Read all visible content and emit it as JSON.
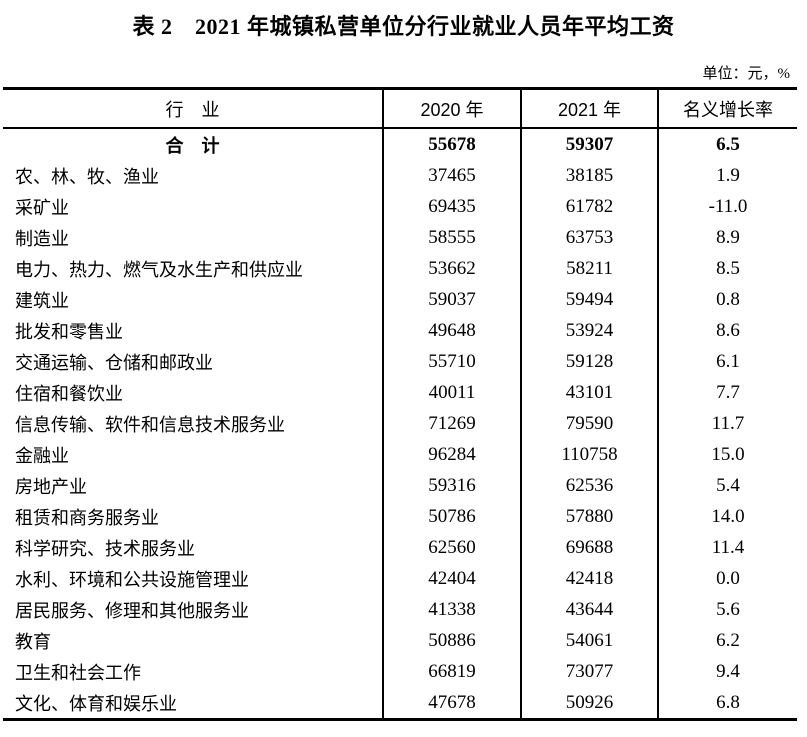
{
  "page": {
    "title": "表 2　2021 年城镇私营单位分行业就业人员年平均工资",
    "unit_note": "单位：元，%"
  },
  "table": {
    "columns": [
      "行　业",
      "2020 年",
      "2021 年",
      "名义增长率"
    ],
    "rows": [
      {
        "industry": "合　计",
        "y2020": "55678",
        "y2021": "59307",
        "growth": "6.5",
        "total": true
      },
      {
        "industry": "农、林、牧、渔业",
        "y2020": "37465",
        "y2021": "38185",
        "growth": "1.9"
      },
      {
        "industry": "采矿业",
        "y2020": "69435",
        "y2021": "61782",
        "growth": "-11.0"
      },
      {
        "industry": "制造业",
        "y2020": "58555",
        "y2021": "63753",
        "growth": "8.9"
      },
      {
        "industry": "电力、热力、燃气及水生产和供应业",
        "y2020": "53662",
        "y2021": "58211",
        "growth": "8.5"
      },
      {
        "industry": "建筑业",
        "y2020": "59037",
        "y2021": "59494",
        "growth": "0.8"
      },
      {
        "industry": "批发和零售业",
        "y2020": "49648",
        "y2021": "53924",
        "growth": "8.6"
      },
      {
        "industry": "交通运输、仓储和邮政业",
        "y2020": "55710",
        "y2021": "59128",
        "growth": "6.1"
      },
      {
        "industry": "住宿和餐饮业",
        "y2020": "40011",
        "y2021": "43101",
        "growth": "7.7"
      },
      {
        "industry": "信息传输、软件和信息技术服务业",
        "y2020": "71269",
        "y2021": "79590",
        "growth": "11.7"
      },
      {
        "industry": "金融业",
        "y2020": "96284",
        "y2021": "110758",
        "growth": "15.0"
      },
      {
        "industry": "房地产业",
        "y2020": "59316",
        "y2021": "62536",
        "growth": "5.4"
      },
      {
        "industry": "租赁和商务服务业",
        "y2020": "50786",
        "y2021": "57880",
        "growth": "14.0"
      },
      {
        "industry": "科学研究、技术服务业",
        "y2020": "62560",
        "y2021": "69688",
        "growth": "11.4"
      },
      {
        "industry": "水利、环境和公共设施管理业",
        "y2020": "42404",
        "y2021": "42418",
        "growth": "0.0"
      },
      {
        "industry": "居民服务、修理和其他服务业",
        "y2020": "41338",
        "y2021": "43644",
        "growth": "5.6"
      },
      {
        "industry": "教育",
        "y2020": "50886",
        "y2021": "54061",
        "growth": "6.2"
      },
      {
        "industry": "卫生和社会工作",
        "y2020": "66819",
        "y2021": "73077",
        "growth": "9.4"
      },
      {
        "industry": "文化、体育和娱乐业",
        "y2020": "47678",
        "y2021": "50926",
        "growth": "6.8"
      }
    ]
  }
}
